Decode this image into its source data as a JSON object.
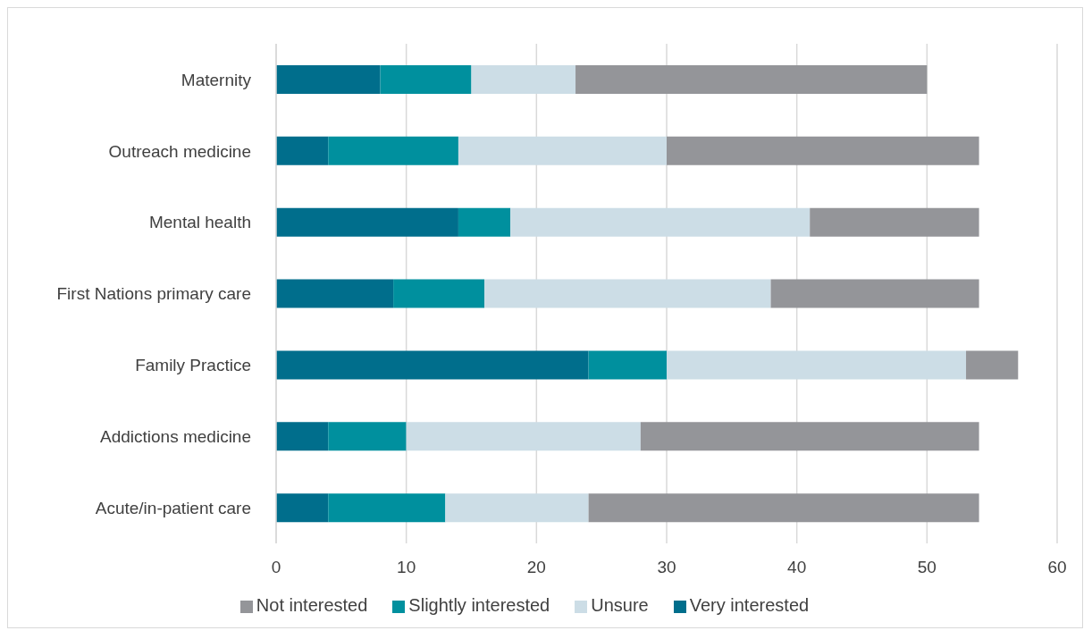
{
  "chart_data": {
    "type": "bar",
    "orientation": "horizontal",
    "stacked": true,
    "categories": [
      "Maternity",
      "Outreach medicine",
      "Mental health",
      "First Nations primary care",
      "Family Practice",
      "Addictions medicine",
      "Acute/in-patient care"
    ],
    "series": [
      {
        "name": "Very interested",
        "color": "#006e8c",
        "values": [
          8,
          4,
          14,
          9,
          24,
          4,
          4
        ]
      },
      {
        "name": "Slightly interested",
        "color": "#00909e",
        "values": [
          7,
          10,
          4,
          7,
          6,
          6,
          9
        ]
      },
      {
        "name": "Unsure",
        "color": "#ccdde6",
        "values": [
          8,
          16,
          23,
          22,
          23,
          18,
          11
        ]
      },
      {
        "name": "Not interested",
        "color": "#949599",
        "values": [
          27,
          24,
          13,
          16,
          4,
          26,
          30
        ]
      }
    ],
    "xlim": [
      0,
      60
    ],
    "xticks": [
      0,
      10,
      20,
      30,
      40,
      50,
      60
    ],
    "grid": "x",
    "legend": "bottom"
  }
}
